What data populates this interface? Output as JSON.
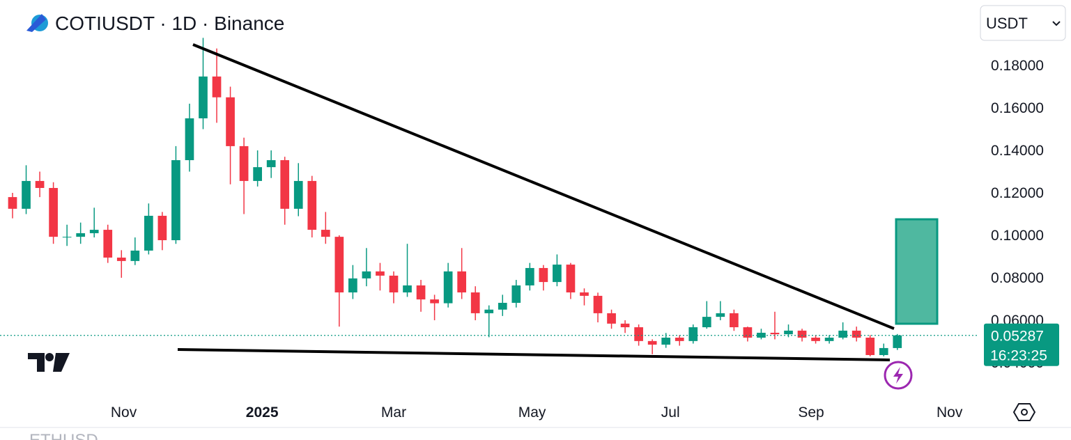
{
  "chart_data": {
    "type": "candlestick",
    "title": "COTIUSDT · 1D · Binance",
    "currency": "USDT",
    "x": [
      0,
      6,
      12,
      18,
      24,
      30,
      36,
      42,
      48,
      54,
      60,
      66,
      72,
      78,
      84,
      90,
      96,
      102,
      108,
      114,
      120,
      126,
      132,
      138,
      144,
      150,
      156,
      162,
      168,
      174,
      180,
      186,
      192,
      198,
      204,
      210,
      216,
      222,
      228,
      234,
      240,
      246,
      252,
      258,
      264,
      270,
      276,
      282,
      288,
      294,
      300,
      306,
      312,
      318,
      324,
      330,
      336,
      342,
      348,
      354,
      360,
      366,
      372,
      378,
      384,
      390
    ],
    "open": [
      0.118,
      0.1125,
      0.1256,
      0.1223,
      0.0993,
      0.0993,
      0.101,
      0.1026,
      0.0895,
      0.0879,
      0.0928,
      0.1092,
      0.0977,
      0.1354,
      0.1551,
      0.1748,
      0.165,
      0.142,
      0.1256,
      0.1321,
      0.1354,
      0.1125,
      0.1256,
      0.1026,
      0.0993,
      0.0731,
      0.0797,
      0.083,
      0.081,
      0.0731,
      0.0764,
      0.0698,
      0.068,
      0.083,
      0.0731,
      0.0633,
      0.065,
      0.0682,
      0.0764,
      0.0846,
      0.078,
      0.0862,
      0.0731,
      0.0715,
      0.0633,
      0.0584,
      0.0567,
      0.0502,
      0.0485,
      0.0518,
      0.0502,
      0.0567,
      0.0616,
      0.0633,
      0.0567,
      0.0518,
      0.0541,
      0.0534,
      0.0551,
      0.0518,
      0.0502,
      0.0518,
      0.0551,
      0.0518,
      0.0436,
      0.0469
    ],
    "high": [
      0.12,
      0.133,
      0.13,
      0.125,
      0.105,
      0.106,
      0.113,
      0.105,
      0.093,
      0.099,
      0.115,
      0.111,
      0.142,
      0.162,
      0.193,
      0.188,
      0.17,
      0.146,
      0.14,
      0.14,
      0.137,
      0.134,
      0.128,
      0.111,
      0.1,
      0.086,
      0.094,
      0.087,
      0.083,
      0.096,
      0.079,
      0.072,
      0.087,
      0.094,
      0.076,
      0.067,
      0.072,
      0.079,
      0.087,
      0.086,
      0.091,
      0.087,
      0.075,
      0.073,
      0.065,
      0.06,
      0.058,
      0.051,
      0.054,
      0.053,
      0.058,
      0.069,
      0.069,
      0.065,
      0.057,
      0.056,
      0.064,
      0.058,
      0.056,
      0.053,
      0.053,
      0.059,
      0.057,
      0.053,
      0.049,
      0.0535
    ],
    "low": [
      0.108,
      0.11,
      0.118,
      0.096,
      0.095,
      0.096,
      0.099,
      0.087,
      0.08,
      0.086,
      0.091,
      0.093,
      0.096,
      0.13,
      0.15,
      0.153,
      0.124,
      0.11,
      0.123,
      0.127,
      0.105,
      0.109,
      0.099,
      0.096,
      0.057,
      0.07,
      0.076,
      0.074,
      0.068,
      0.071,
      0.064,
      0.06,
      0.066,
      0.07,
      0.06,
      0.052,
      0.062,
      0.066,
      0.074,
      0.074,
      0.076,
      0.07,
      0.067,
      0.059,
      0.056,
      0.054,
      0.048,
      0.044,
      0.047,
      0.048,
      0.049,
      0.056,
      0.06,
      0.055,
      0.05,
      0.051,
      0.051,
      0.052,
      0.05,
      0.049,
      0.049,
      0.051,
      0.05,
      0.043,
      0.043,
      0.046
    ],
    "close": [
      0.1125,
      0.1256,
      0.1223,
      0.0993,
      0.0993,
      0.101,
      0.1026,
      0.0895,
      0.0879,
      0.0928,
      0.1092,
      0.0977,
      0.1354,
      0.1551,
      0.1748,
      0.165,
      0.142,
      0.1256,
      0.1321,
      0.1354,
      0.1125,
      0.1256,
      0.1026,
      0.0993,
      0.0731,
      0.0797,
      0.083,
      0.081,
      0.0731,
      0.0764,
      0.0698,
      0.068,
      0.083,
      0.0731,
      0.0633,
      0.065,
      0.0682,
      0.0764,
      0.0846,
      0.078,
      0.0862,
      0.0731,
      0.0715,
      0.0633,
      0.0584,
      0.0567,
      0.0502,
      0.0485,
      0.0518,
      0.0502,
      0.0567,
      0.0616,
      0.0633,
      0.0567,
      0.0518,
      0.0541,
      0.0534,
      0.0551,
      0.0518,
      0.0502,
      0.0518,
      0.0551,
      0.0518,
      0.0436,
      0.0469,
      0.05287
    ],
    "up_color": "#089981",
    "down_color": "#f23645",
    "xlim": [
      0,
      426
    ],
    "xticks": [
      {
        "value": 49,
        "label": "Nov"
      },
      {
        "value": 110,
        "label": "2025"
      },
      {
        "value": 168,
        "label": "Mar"
      },
      {
        "value": 229,
        "label": "May"
      },
      {
        "value": 290,
        "label": "Jul"
      },
      {
        "value": 352,
        "label": "Sep"
      },
      {
        "value": 413,
        "label": "Nov"
      }
    ],
    "ylim": [
      0.0272,
      0.1928
    ],
    "yticks": [
      {
        "value": 0.04,
        "label": "0.04000"
      },
      {
        "value": 0.06,
        "label": "0.06000"
      },
      {
        "value": 0.08,
        "label": "0.08000"
      },
      {
        "value": 0.1,
        "label": "0.10000"
      },
      {
        "value": 0.12,
        "label": "0.12000"
      },
      {
        "value": 0.14,
        "label": "0.14000"
      },
      {
        "value": 0.16,
        "label": "0.16000"
      },
      {
        "value": 0.18,
        "label": "0.18000"
      }
    ],
    "last_price": 0.05287,
    "countdown": "16:23:25",
    "footer_symbol": "ETHUSD"
  }
}
